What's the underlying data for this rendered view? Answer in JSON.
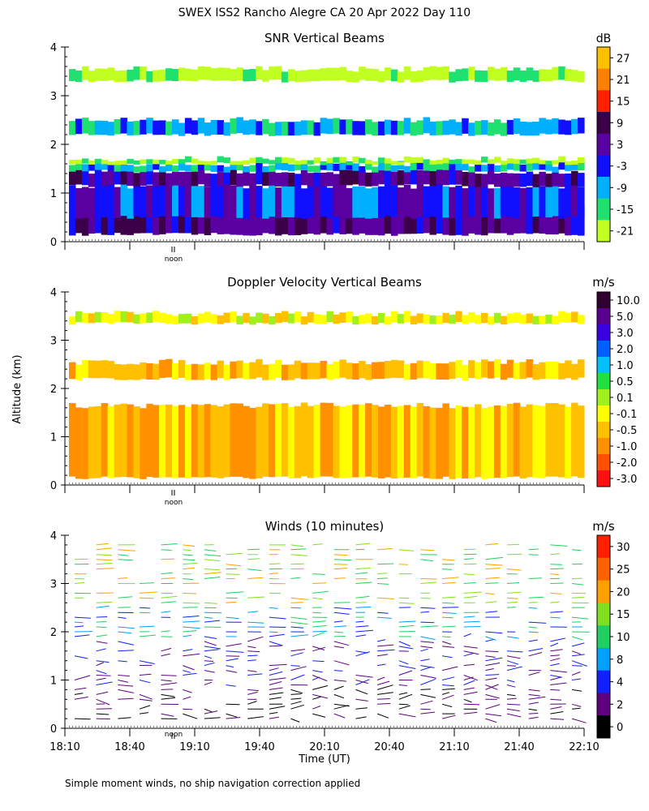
{
  "figure": {
    "title": "SWEX ISS2 Rancho Alegre CA  20 Apr 2022 Day 110",
    "y_axis_label": "Altitude (km)",
    "x_axis_label": "Time (UT)",
    "footnote": "Simple moment winds, no ship navigation correction applied",
    "noon_label": "noon"
  },
  "chart_data": [
    {
      "type": "heatmap",
      "title": "SNR Vertical Beams",
      "unit": "dB",
      "y_ticks": [
        "0",
        "1",
        "2",
        "3",
        "4"
      ],
      "ylim": [
        0,
        4
      ],
      "xlim": [
        "18:10",
        "22:10"
      ],
      "colorbar_labels": [
        "27",
        "21",
        "15",
        "9",
        "3",
        "-3",
        "-9",
        "-15",
        "-21"
      ],
      "colorbar_colors": [
        "#ffc000",
        "#ff8000",
        "#ff2000",
        "#3c0048",
        "#5a00a0",
        "#1010ff",
        "#00b0ff",
        "#20e070",
        "#c0ff20"
      ],
      "layers": [
        {
          "range_km": [
            0.15,
            0.8
          ],
          "level": "3"
        },
        {
          "range_km": [
            0.5,
            1.15
          ],
          "level": "-3"
        },
        {
          "range_km": [
            1.15,
            1.45
          ],
          "level": "3"
        },
        {
          "range_km": [
            1.45,
            1.6
          ],
          "level": "-9"
        },
        {
          "range_km": [
            1.6,
            1.7
          ],
          "level": "-21"
        },
        {
          "range_km": [
            2.2,
            2.5
          ],
          "level": "-9"
        },
        {
          "range_km": [
            3.3,
            3.55
          ],
          "level": "-21"
        }
      ]
    },
    {
      "type": "heatmap",
      "title": "Doppler Velocity Vertical Beams",
      "unit": "m/s",
      "y_ticks": [
        "0",
        "1",
        "2",
        "3",
        "4"
      ],
      "ylim": [
        0,
        4
      ],
      "xlim": [
        "18:10",
        "22:10"
      ],
      "colorbar_labels": [
        "10.0",
        "5.0",
        "3.0",
        "2.0",
        "1.0",
        "0.5",
        "0.1",
        "-0.1",
        "-0.5",
        "-1.0",
        "-2.0",
        "-3.0"
      ],
      "colorbar_colors": [
        "#300030",
        "#5a0090",
        "#3a00e0",
        "#0060ff",
        "#00c0ff",
        "#20e040",
        "#a0f020",
        "#ffff00",
        "#ffc000",
        "#ff9000",
        "#ff5000",
        "#ff1010"
      ],
      "layers": [
        {
          "range_km": [
            0.15,
            1.65
          ],
          "level": "-0.5"
        },
        {
          "range_km": [
            2.2,
            2.55
          ],
          "level": "-0.5"
        },
        {
          "range_km": [
            3.35,
            3.55
          ],
          "level": "-0.1"
        }
      ]
    },
    {
      "type": "scatter",
      "title": "Winds (10 minutes)",
      "unit": "m/s",
      "y_ticks": [
        "0",
        "1",
        "2",
        "3",
        "4"
      ],
      "ylim": [
        0,
        4
      ],
      "x_ticks": [
        "18:10",
        "18:40",
        "19:10",
        "19:40",
        "20:10",
        "20:40",
        "21:10",
        "21:40",
        "22:10"
      ],
      "xlim": [
        "18:10",
        "22:10"
      ],
      "colorbar_labels": [
        "30",
        "25",
        "20",
        "15",
        "10",
        "8",
        "4",
        "2",
        "0"
      ],
      "colorbar_colors": [
        "#ff2000",
        "#ff6000",
        "#ffa000",
        "#80e020",
        "#20d060",
        "#00a0ff",
        "#1020ff",
        "#600080",
        "#000000"
      ],
      "wind_columns": 24
    }
  ]
}
